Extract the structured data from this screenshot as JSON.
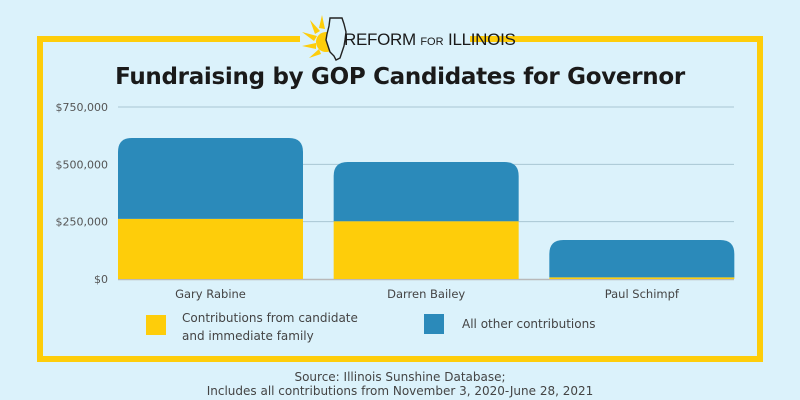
{
  "logo": {
    "name_main": "REFORM",
    "name_mid": "FOR",
    "name_end": "ILLINOIS"
  },
  "colors": {
    "background": "#dbf2fb",
    "frame": "#fecd0a",
    "family": "#fecd0a",
    "other": "#2b8aba",
    "grid": "#a9c7d3"
  },
  "chart_data": {
    "type": "bar",
    "stacked": true,
    "title": "Fundraising by GOP Candidates for Governor",
    "xlabel": "",
    "ylabel": "",
    "categories": [
      "Gary Rabine",
      "Darren Bailey",
      "Paul Schimpf"
    ],
    "series": [
      {
        "name": "Contributions from candidate and immediate family",
        "color": "#fecd0a",
        "values": [
          262000,
          252000,
          7000
        ]
      },
      {
        "name": "All other contributions",
        "color": "#2b8aba",
        "values": [
          353000,
          258000,
          163000
        ]
      }
    ],
    "ylim": [
      0,
      750000
    ],
    "yticks": [
      0,
      250000,
      500000,
      750000
    ],
    "ytick_labels": [
      "$0",
      "$250,000",
      "$500,000",
      "$750,000"
    ],
    "grid": true,
    "legend_position": "bottom",
    "legend": [
      {
        "line1": "Contributions from candidate",
        "line2": "and immediate family"
      },
      {
        "line1": "All other contributions",
        "line2": ""
      }
    ]
  },
  "source": {
    "line1": "Source: Illinois Sunshine Database;",
    "line2": "Includes all contributions from November 3, 2020-June 28, 2021"
  }
}
